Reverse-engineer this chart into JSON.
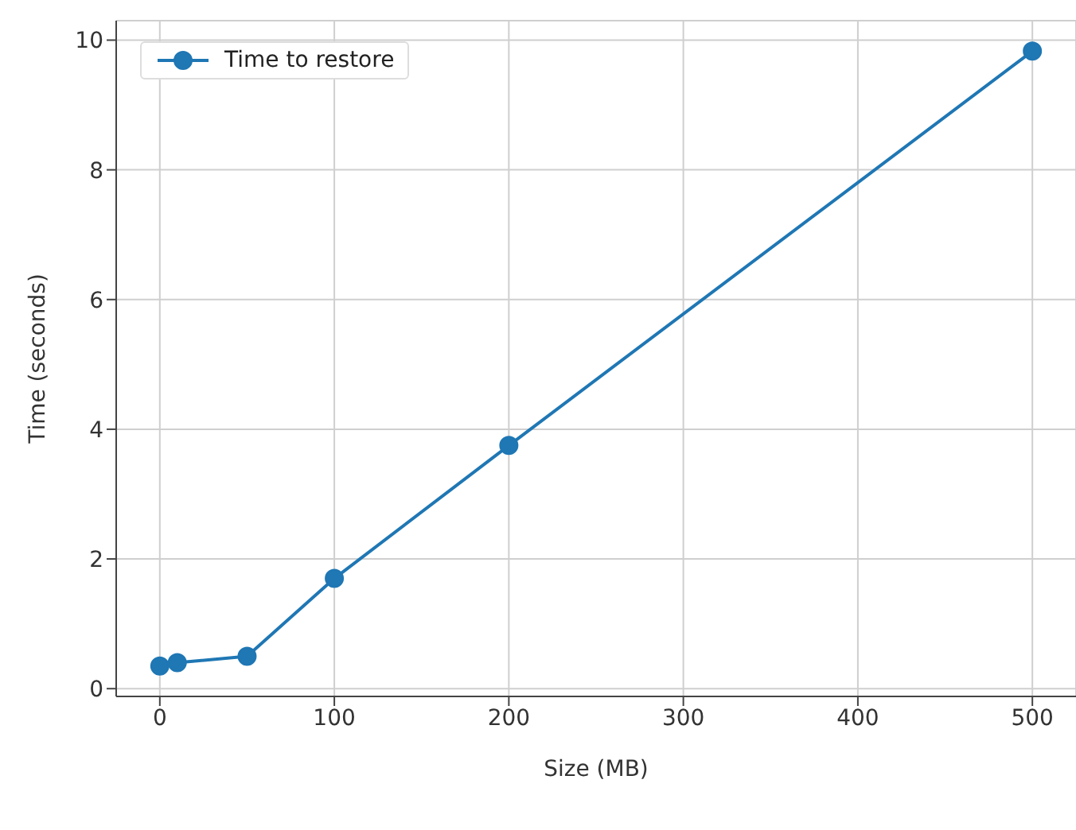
{
  "chart_data": {
    "type": "line",
    "xlabel": "Size (MB)",
    "ylabel": "Time (seconds)",
    "x": [
      0,
      10,
      50,
      100,
      200,
      500
    ],
    "series": [
      {
        "name": "Time to restore",
        "color": "#1f77b4",
        "values": [
          0.35,
          0.4,
          0.5,
          1.7,
          3.75,
          9.83
        ]
      }
    ],
    "xlim": [
      -25,
      525
    ],
    "xticks": [
      0,
      100,
      200,
      300,
      400,
      500
    ],
    "ylim": [
      -0.12,
      10.3
    ],
    "yticks": [
      0,
      2,
      4,
      6,
      8,
      10
    ],
    "grid": true,
    "legend": "top left",
    "marker": "circle",
    "line_style": "solid"
  }
}
